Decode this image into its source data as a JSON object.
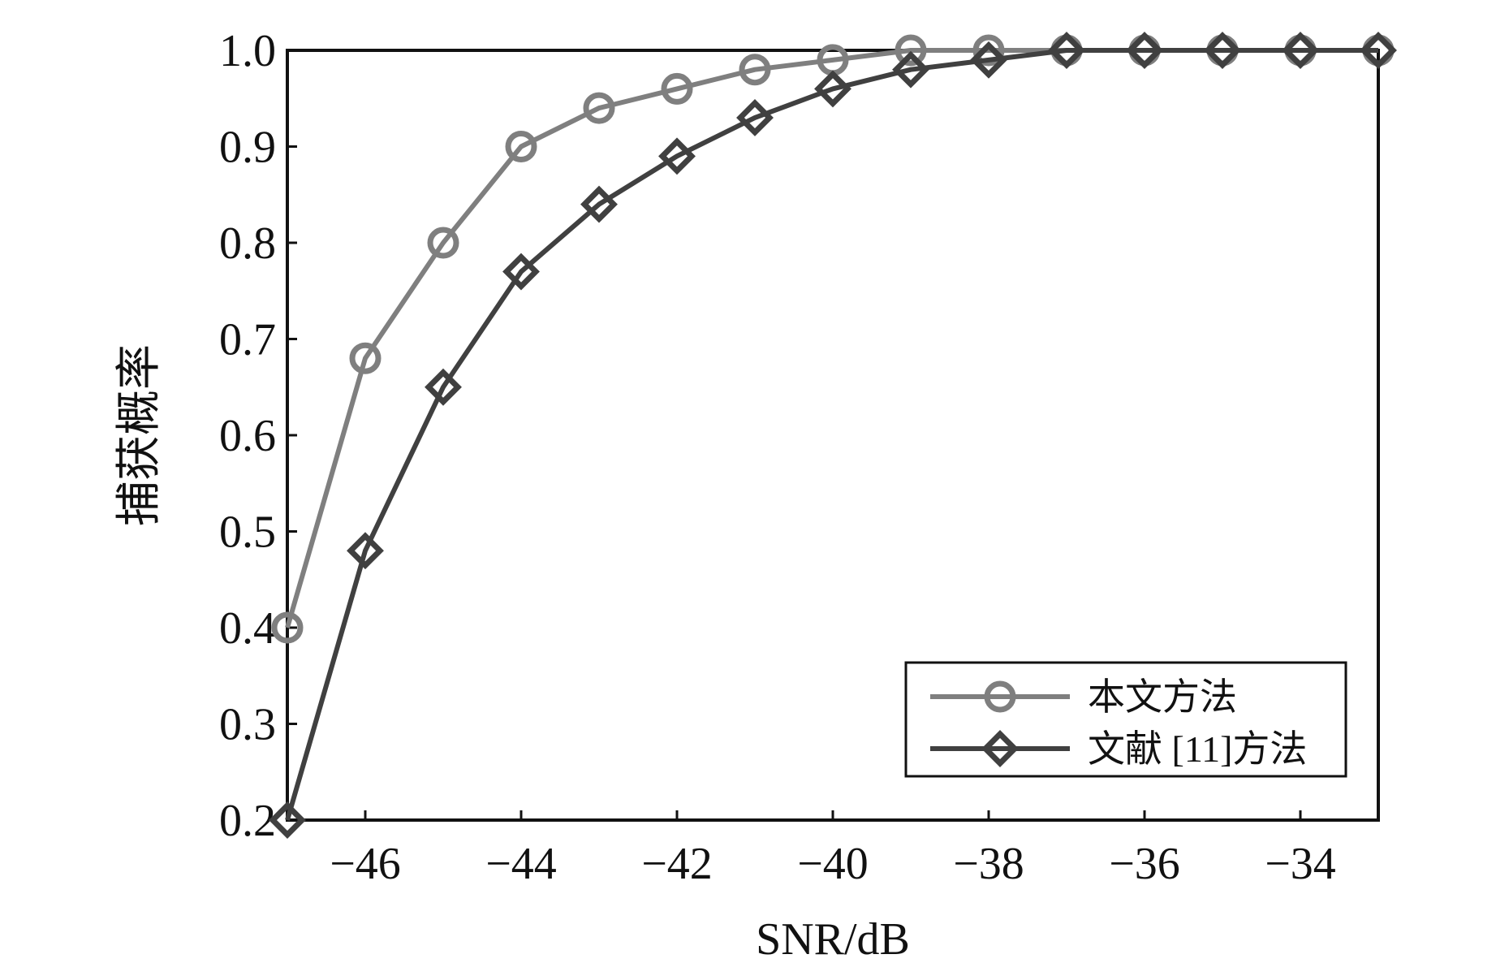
{
  "chart_data": {
    "type": "line",
    "title": "",
    "xlabel": "SNR/dB",
    "ylabel": "捕获概率",
    "xlim": [
      -47,
      -33
    ],
    "ylim": [
      0.2,
      1.0
    ],
    "xticks": [
      -46,
      -44,
      -42,
      -40,
      -38,
      -36,
      -34
    ],
    "xtick_labels": [
      "−46",
      "−44",
      "−42",
      "−40",
      "−38",
      "−36",
      "−34"
    ],
    "yticks": [
      0.2,
      0.3,
      0.4,
      0.5,
      0.6,
      0.7,
      0.8,
      0.9,
      1.0
    ],
    "ytick_labels": [
      "0.2",
      "0.3",
      "0.4",
      "0.5",
      "0.6",
      "0.7",
      "0.8",
      "0.9",
      "1.0"
    ],
    "x": [
      -47,
      -46,
      -45,
      -44,
      -43,
      -42,
      -41,
      -40,
      -39,
      -38,
      -37,
      -36,
      -35,
      -34,
      -33
    ],
    "series": [
      {
        "name": "本文方法",
        "marker": "circle",
        "color": "#7f7f7f",
        "values": [
          0.4,
          0.68,
          0.8,
          0.9,
          0.94,
          0.96,
          0.98,
          0.99,
          1.0,
          1.0,
          1.0,
          1.0,
          1.0,
          1.0,
          1.0
        ]
      },
      {
        "name": "文献 [11]方法",
        "marker": "diamond",
        "color": "#404040",
        "values": [
          0.2,
          0.48,
          0.65,
          0.77,
          0.84,
          0.89,
          0.93,
          0.96,
          0.98,
          0.99,
          1.0,
          1.0,
          1.0,
          1.0,
          1.0
        ]
      }
    ],
    "legend": {
      "position": "bottom-right"
    },
    "grid": false
  }
}
